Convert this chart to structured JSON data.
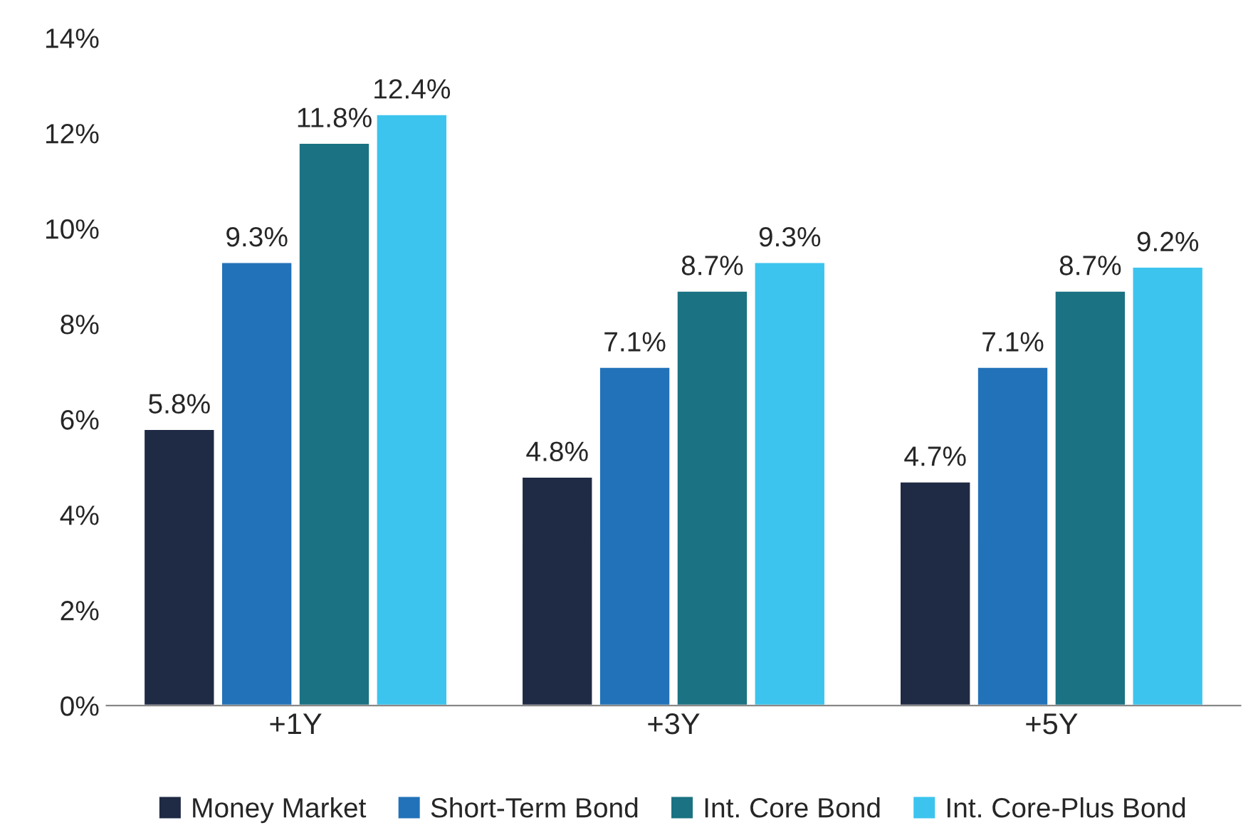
{
  "chart_data": {
    "type": "bar",
    "categories": [
      "+1Y",
      "+3Y",
      "+5Y"
    ],
    "series": [
      {
        "name": "Money Market",
        "color": "#1f2a44",
        "values": [
          5.8,
          4.8,
          4.7
        ],
        "value_labels": [
          "5.8%",
          "4.8%",
          "4.7%"
        ]
      },
      {
        "name": "Short-Term Bond",
        "color": "#2272b9",
        "values": [
          9.3,
          7.1,
          7.1
        ],
        "value_labels": [
          "9.3%",
          "7.1%",
          "7.1%"
        ]
      },
      {
        "name": "Int. Core Bond",
        "color": "#1a7282",
        "values": [
          11.8,
          8.7,
          8.7
        ],
        "value_labels": [
          "11.8%",
          "8.7%",
          "8.7%"
        ]
      },
      {
        "name": "Int. Core-Plus Bond",
        "color": "#3cc4ee",
        "values": [
          12.4,
          9.3,
          9.2
        ],
        "value_labels": [
          "12.4%",
          "9.3%",
          "9.2%"
        ]
      }
    ],
    "ylim": [
      0,
      14
    ],
    "yticks": [
      {
        "value": 0,
        "label": "0%"
      },
      {
        "value": 2,
        "label": "2%"
      },
      {
        "value": 4,
        "label": "4%"
      },
      {
        "value": 6,
        "label": "6%"
      },
      {
        "value": 8,
        "label": "8%"
      },
      {
        "value": 10,
        "label": "10%"
      },
      {
        "value": 12,
        "label": "12%"
      },
      {
        "value": 14,
        "label": "14%"
      }
    ],
    "grid": false,
    "legend": "bottom"
  }
}
